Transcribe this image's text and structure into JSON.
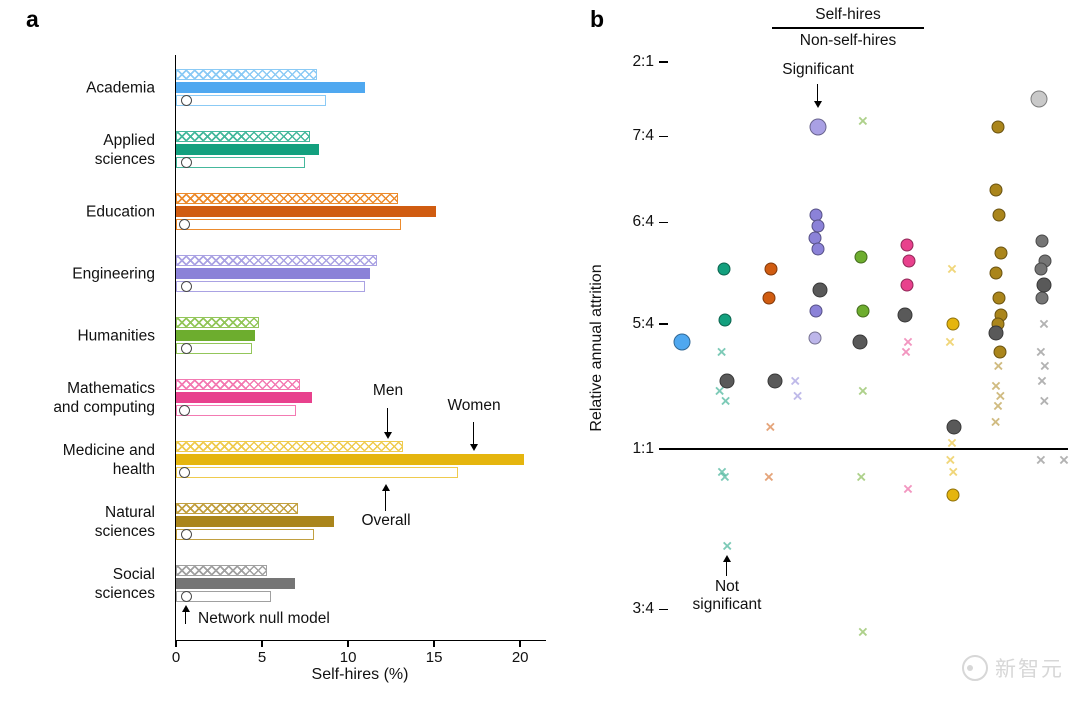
{
  "panels": {
    "a": "a",
    "b": "b"
  },
  "domains": [
    {
      "name": "Academia",
      "color": "#4fa8f0",
      "light": "#8bcaf5"
    },
    {
      "name": "Applied sciences",
      "color": "#13a07e",
      "light": "#45b89c"
    },
    {
      "name": "Education",
      "color": "#d05c11",
      "light": "#ec8b2d"
    },
    {
      "name": "Engineering",
      "color": "#8b82d8",
      "light": "#aaa2e3"
    },
    {
      "name": "Humanities",
      "color": "#6dad2e",
      "light": "#93c65a"
    },
    {
      "name": "Mathematics and computing",
      "color": "#e8418d",
      "light": "#f37ab2"
    },
    {
      "name": "Medicine and health",
      "color": "#e5b50e",
      "light": "#efcb4e"
    },
    {
      "name": "Natural sciences",
      "color": "#aa851b",
      "light": "#c2a040"
    },
    {
      "name": "Social sciences",
      "color": "#757575",
      "light": "#a0a0a0"
    }
  ],
  "chart_data": [
    {
      "id": "panel_a",
      "type": "bar",
      "orientation": "horizontal",
      "xlabel": "Self-hires (%)",
      "xlim": [
        0,
        21.5
      ],
      "x_ticks": [
        0,
        5,
        10,
        15,
        20
      ],
      "series": [
        {
          "name": "Men",
          "style": "hatched-outline"
        },
        {
          "name": "Women",
          "style": "solid-fill"
        },
        {
          "name": "Overall",
          "style": "open-outline"
        },
        {
          "name": "Network null model",
          "style": "white-circle-marker"
        }
      ],
      "legend": {
        "men": "Men",
        "women": "Women",
        "overall": "Overall",
        "null_model": "Network null model"
      },
      "groups": [
        {
          "domain": "Academia",
          "label_lines": [
            "Academia"
          ],
          "men": 8.2,
          "women": 11.0,
          "overall": 8.7,
          "null_model": 0.6
        },
        {
          "domain": "Applied sciences",
          "label_lines": [
            "Applied",
            "sciences"
          ],
          "men": 7.8,
          "women": 8.3,
          "overall": 7.5,
          "null_model": 0.6
        },
        {
          "domain": "Education",
          "label_lines": [
            "Education"
          ],
          "men": 12.9,
          "women": 15.1,
          "overall": 13.1,
          "null_model": 0.5
        },
        {
          "domain": "Engineering",
          "label_lines": [
            "Engineering"
          ],
          "men": 11.7,
          "women": 11.3,
          "overall": 11.0,
          "null_model": 0.6
        },
        {
          "domain": "Humanities",
          "label_lines": [
            "Humanities"
          ],
          "men": 4.8,
          "women": 4.6,
          "overall": 4.4,
          "null_model": 0.6
        },
        {
          "domain": "Mathematics and computing",
          "label_lines": [
            "Mathematics",
            "and computing"
          ],
          "men": 7.2,
          "women": 7.9,
          "overall": 7.0,
          "null_model": 0.5
        },
        {
          "domain": "Medicine and health",
          "label_lines": [
            "Medicine and",
            "health"
          ],
          "men": 13.2,
          "women": 20.2,
          "overall": 16.4,
          "null_model": 0.5
        },
        {
          "domain": "Natural sciences",
          "label_lines": [
            "Natural",
            "sciences"
          ],
          "men": 7.1,
          "women": 9.2,
          "overall": 8.0,
          "null_model": 0.6
        },
        {
          "domain": "Social sciences",
          "label_lines": [
            "Social",
            "sciences"
          ],
          "men": 5.3,
          "women": 6.9,
          "overall": 5.5,
          "null_model": 0.6
        }
      ]
    },
    {
      "id": "panel_b",
      "type": "scatter",
      "ylabel": "Relative annual attrition",
      "yscale": "log",
      "ylim": [
        0.7,
        2.05
      ],
      "baseline": 1.0,
      "y_ticks": [
        {
          "label": "2:1",
          "value": 2.0
        },
        {
          "label": "7:4",
          "value": 1.75
        },
        {
          "label": "6:4",
          "value": 1.5
        },
        {
          "label": "5:4",
          "value": 1.25
        },
        {
          "label": "1:1",
          "value": 1.0
        },
        {
          "label": "3:4",
          "value": 0.75
        }
      ],
      "header": {
        "numerator": "Self-hires",
        "denominator": "Non-self-hires"
      },
      "annotations": {
        "significant": "Significant",
        "not_line1": "Not",
        "not_line2": "significant"
      },
      "marker_legend": {
        "circle": "significant",
        "x": "not significant",
        "dark_gray_circle": "domain-level estimate"
      },
      "points": [
        {
          "domain": "Academia",
          "x": 0.035,
          "ratio": 1.21,
          "marker": "circle",
          "size": "big",
          "significant": true
        },
        {
          "domain": "Applied sciences",
          "x": 0.14,
          "ratio": 1.38,
          "marker": "circle",
          "significant": true
        },
        {
          "domain": "Applied sciences",
          "x": 0.143,
          "ratio": 1.26,
          "marker": "circle",
          "significant": true
        },
        {
          "domain": "Applied sciences",
          "x": 0.148,
          "ratio": 1.13,
          "marker": "circle",
          "level": "domain",
          "significant": true
        },
        {
          "domain": "Applied sciences",
          "x": 0.134,
          "ratio": 1.19,
          "marker": "x",
          "significant": false
        },
        {
          "domain": "Applied sciences",
          "x": 0.129,
          "ratio": 1.11,
          "marker": "x",
          "significant": false
        },
        {
          "domain": "Applied sciences",
          "x": 0.144,
          "ratio": 1.09,
          "marker": "x",
          "significant": false
        },
        {
          "domain": "Applied sciences",
          "x": 0.135,
          "ratio": 0.96,
          "marker": "x",
          "significant": false
        },
        {
          "domain": "Applied sciences",
          "x": 0.142,
          "ratio": 0.95,
          "marker": "x",
          "significant": false
        },
        {
          "domain": "Applied sciences",
          "x": 0.148,
          "ratio": 0.84,
          "marker": "x",
          "significant": false,
          "note": "not-significant-arrow-target"
        },
        {
          "domain": "Education",
          "x": 0.258,
          "ratio": 1.38,
          "marker": "circle",
          "significant": true
        },
        {
          "domain": "Education",
          "x": 0.253,
          "ratio": 1.31,
          "marker": "circle",
          "significant": true
        },
        {
          "domain": "Education",
          "x": 0.268,
          "ratio": 1.13,
          "marker": "circle",
          "level": "domain",
          "significant": true
        },
        {
          "domain": "Education",
          "x": 0.256,
          "ratio": 1.04,
          "marker": "x",
          "significant": false
        },
        {
          "domain": "Education",
          "x": 0.252,
          "ratio": 0.95,
          "marker": "x",
          "significant": false
        },
        {
          "domain": "Engineering",
          "x": 0.374,
          "ratio": 1.78,
          "marker": "circle",
          "size": "big",
          "fill": "#a9a0e4",
          "significant": true,
          "note": "significant-arrow-target"
        },
        {
          "domain": "Engineering",
          "x": 0.37,
          "ratio": 1.52,
          "marker": "circle",
          "significant": true
        },
        {
          "domain": "Engineering",
          "x": 0.376,
          "ratio": 1.49,
          "marker": "circle",
          "significant": true
        },
        {
          "domain": "Engineering",
          "x": 0.368,
          "ratio": 1.46,
          "marker": "circle",
          "significant": true
        },
        {
          "domain": "Engineering",
          "x": 0.374,
          "ratio": 1.43,
          "marker": "circle",
          "significant": true
        },
        {
          "domain": "Engineering",
          "x": 0.38,
          "ratio": 1.33,
          "marker": "circle",
          "level": "domain",
          "significant": true
        },
        {
          "domain": "Engineering",
          "x": 0.371,
          "ratio": 1.28,
          "marker": "circle",
          "significant": true
        },
        {
          "domain": "Engineering",
          "x": 0.367,
          "ratio": 1.22,
          "marker": "circle",
          "fill": "#bdb6ea",
          "significant": true
        },
        {
          "domain": "Engineering",
          "x": 0.318,
          "ratio": 1.13,
          "marker": "x",
          "significant": false
        },
        {
          "domain": "Engineering",
          "x": 0.324,
          "ratio": 1.1,
          "marker": "x",
          "significant": false
        },
        {
          "domain": "Humanities",
          "x": 0.487,
          "ratio": 1.8,
          "marker": "x",
          "significant": false
        },
        {
          "domain": "Humanities",
          "x": 0.483,
          "ratio": 1.41,
          "marker": "circle",
          "significant": true
        },
        {
          "domain": "Humanities",
          "x": 0.488,
          "ratio": 1.28,
          "marker": "circle",
          "significant": true
        },
        {
          "domain": "Humanities",
          "x": 0.479,
          "ratio": 1.21,
          "marker": "circle",
          "level": "domain",
          "significant": true
        },
        {
          "domain": "Humanities",
          "x": 0.487,
          "ratio": 1.11,
          "marker": "x",
          "significant": false
        },
        {
          "domain": "Humanities",
          "x": 0.483,
          "ratio": 0.95,
          "marker": "x",
          "significant": false
        },
        {
          "domain": "Humanities",
          "x": 0.487,
          "ratio": 0.72,
          "marker": "x",
          "significant": false
        },
        {
          "domain": "Mathematics and computing",
          "x": 0.598,
          "ratio": 1.44,
          "marker": "circle",
          "significant": true
        },
        {
          "domain": "Mathematics and computing",
          "x": 0.603,
          "ratio": 1.4,
          "marker": "circle",
          "significant": true
        },
        {
          "domain": "Mathematics and computing",
          "x": 0.598,
          "ratio": 1.34,
          "marker": "circle",
          "significant": true
        },
        {
          "domain": "Mathematics and computing",
          "x": 0.593,
          "ratio": 1.27,
          "marker": "circle",
          "level": "domain",
          "significant": true
        },
        {
          "domain": "Mathematics and computing",
          "x": 0.6,
          "ratio": 1.21,
          "marker": "x",
          "significant": false
        },
        {
          "domain": "Mathematics and computing",
          "x": 0.595,
          "ratio": 1.19,
          "marker": "x",
          "significant": false
        },
        {
          "domain": "Mathematics and computing",
          "x": 0.6,
          "ratio": 0.93,
          "marker": "x",
          "significant": false
        },
        {
          "domain": "Medicine and health",
          "x": 0.71,
          "ratio": 1.38,
          "marker": "x",
          "significant": false
        },
        {
          "domain": "Medicine and health",
          "x": 0.713,
          "ratio": 1.25,
          "marker": "circle",
          "significant": true
        },
        {
          "domain": "Medicine and health",
          "x": 0.705,
          "ratio": 1.21,
          "marker": "x",
          "significant": false
        },
        {
          "domain": "Medicine and health",
          "x": 0.716,
          "ratio": 1.04,
          "marker": "circle",
          "level": "domain",
          "significant": true
        },
        {
          "domain": "Medicine and health",
          "x": 0.71,
          "ratio": 1.01,
          "marker": "x",
          "significant": false
        },
        {
          "domain": "Medicine and health",
          "x": 0.706,
          "ratio": 0.98,
          "marker": "x",
          "significant": false
        },
        {
          "domain": "Medicine and health",
          "x": 0.713,
          "ratio": 0.96,
          "marker": "x",
          "significant": false
        },
        {
          "domain": "Medicine and health",
          "x": 0.712,
          "ratio": 0.92,
          "marker": "circle",
          "significant": true
        },
        {
          "domain": "Natural sciences",
          "x": 0.826,
          "ratio": 1.78,
          "marker": "circle",
          "significant": true
        },
        {
          "domain": "Natural sciences",
          "x": 0.82,
          "ratio": 1.59,
          "marker": "circle",
          "significant": true
        },
        {
          "domain": "Natural sciences",
          "x": 0.827,
          "ratio": 1.52,
          "marker": "circle",
          "significant": true
        },
        {
          "domain": "Natural sciences",
          "x": 0.832,
          "ratio": 1.42,
          "marker": "circle",
          "significant": true
        },
        {
          "domain": "Natural sciences",
          "x": 0.821,
          "ratio": 1.37,
          "marker": "circle",
          "significant": true
        },
        {
          "domain": "Natural sciences",
          "x": 0.828,
          "ratio": 1.31,
          "marker": "circle",
          "significant": true
        },
        {
          "domain": "Natural sciences",
          "x": 0.833,
          "ratio": 1.27,
          "marker": "circle",
          "significant": true
        },
        {
          "domain": "Natural sciences",
          "x": 0.824,
          "ratio": 1.25,
          "marker": "circle",
          "significant": true
        },
        {
          "domain": "Natural sciences",
          "x": 0.819,
          "ratio": 1.23,
          "marker": "circle",
          "level": "domain",
          "significant": true
        },
        {
          "domain": "Natural sciences",
          "x": 0.83,
          "ratio": 1.19,
          "marker": "circle",
          "significant": true
        },
        {
          "domain": "Natural sciences",
          "x": 0.826,
          "ratio": 1.16,
          "marker": "x",
          "significant": false
        },
        {
          "domain": "Natural sciences",
          "x": 0.82,
          "ratio": 1.12,
          "marker": "x",
          "significant": false
        },
        {
          "domain": "Natural sciences",
          "x": 0.831,
          "ratio": 1.1,
          "marker": "x",
          "significant": false
        },
        {
          "domain": "Natural sciences",
          "x": 0.825,
          "ratio": 1.08,
          "marker": "x",
          "significant": false
        },
        {
          "domain": "Natural sciences",
          "x": 0.819,
          "ratio": 1.05,
          "marker": "x",
          "significant": false
        },
        {
          "domain": "Social sciences",
          "x": 0.928,
          "ratio": 1.87,
          "marker": "circle",
          "size": "big",
          "fill": "#c9c9c9",
          "significant": true
        },
        {
          "domain": "Social sciences",
          "x": 0.936,
          "ratio": 1.45,
          "marker": "circle",
          "significant": true
        },
        {
          "domain": "Social sciences",
          "x": 0.942,
          "ratio": 1.4,
          "marker": "circle",
          "significant": true
        },
        {
          "domain": "Social sciences",
          "x": 0.932,
          "ratio": 1.38,
          "marker": "circle",
          "significant": true
        },
        {
          "domain": "Social sciences",
          "x": 0.94,
          "ratio": 1.34,
          "marker": "circle",
          "level": "domain",
          "significant": true
        },
        {
          "domain": "Social sciences",
          "x": 0.934,
          "ratio": 1.31,
          "marker": "circle",
          "significant": true
        },
        {
          "domain": "Social sciences",
          "x": 0.94,
          "ratio": 1.25,
          "marker": "x",
          "significant": false
        },
        {
          "domain": "Social sciences",
          "x": 0.932,
          "ratio": 1.19,
          "marker": "x",
          "significant": false
        },
        {
          "domain": "Social sciences",
          "x": 0.942,
          "ratio": 1.16,
          "marker": "x",
          "significant": false
        },
        {
          "domain": "Social sciences",
          "x": 0.935,
          "ratio": 1.13,
          "marker": "x",
          "significant": false
        },
        {
          "domain": "Social sciences",
          "x": 0.941,
          "ratio": 1.09,
          "marker": "x",
          "significant": false
        },
        {
          "domain": "Social sciences",
          "x": 0.932,
          "ratio": 0.98,
          "marker": "x",
          "significant": false
        },
        {
          "domain": "Social sciences",
          "x": 0.99,
          "ratio": 0.98,
          "marker": "x",
          "significant": false
        }
      ]
    }
  ],
  "watermark": {
    "text": "新智元"
  }
}
